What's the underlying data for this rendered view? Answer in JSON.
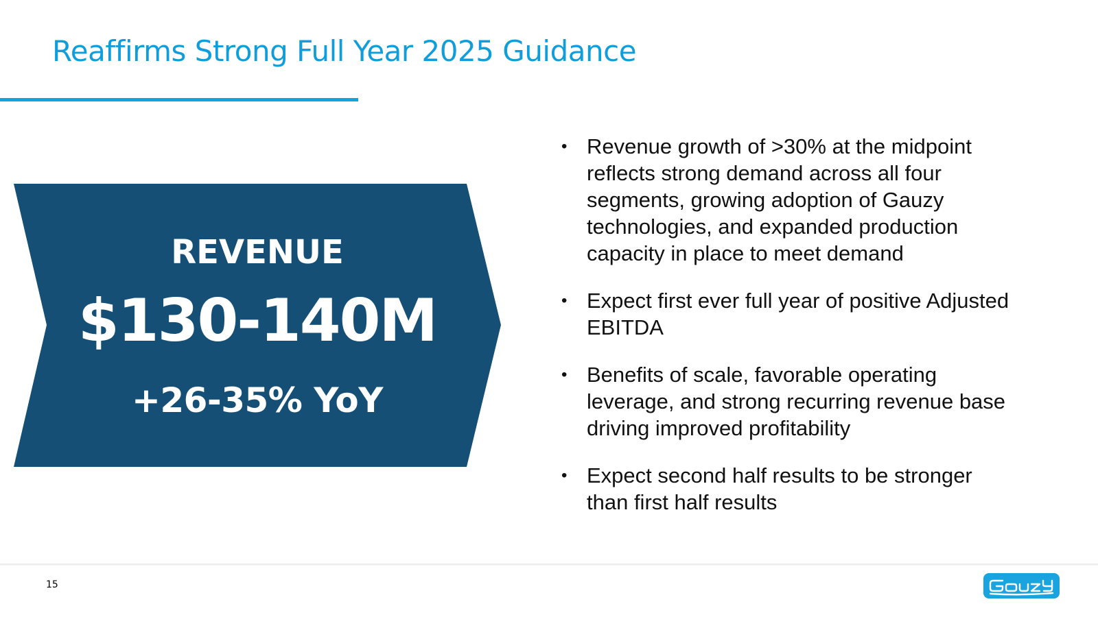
{
  "slide": {
    "title": "Reaffirms Strong Full Year 2025 Guidance",
    "page_number": "15"
  },
  "revenue_callout": {
    "label": "REVENUE",
    "amount": "$130-140M",
    "growth": "+26-35% YoY",
    "fill_color": "#154f76"
  },
  "bullets": [
    {
      "text": "Revenue growth of >30% at the midpoint reflects strong demand across all four segments, growing adoption of Gauzy technologies, and expanded production capacity in place to meet demand"
    },
    {
      "text": "Expect first ever full year of positive Adjusted EBITDA"
    },
    {
      "text": "Benefits of scale, favorable operating leverage, and strong recurring revenue base driving improved profitability"
    },
    {
      "text": "Expect second half results to be stronger than first half results"
    }
  ],
  "bullet_glyph": "•",
  "logo": {
    "icon": "gauzy-logo-icon",
    "color": "#1aa4df"
  },
  "colors": {
    "title": "#0f9ddb",
    "accent_rule": "#12a3dc",
    "callout": "#154f76"
  }
}
